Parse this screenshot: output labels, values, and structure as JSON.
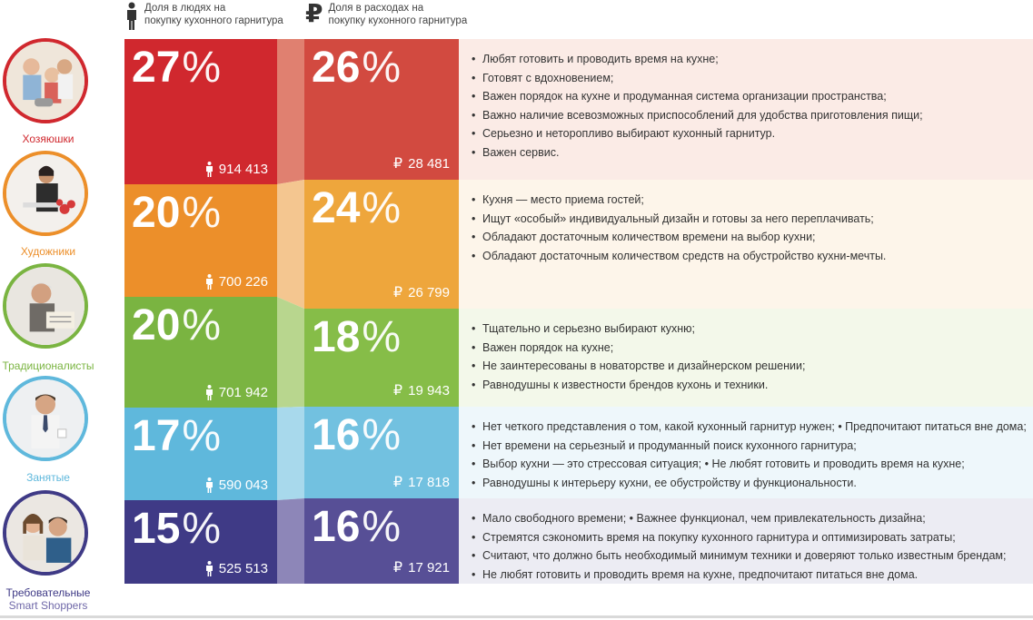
{
  "header": {
    "people_label_line1": "Доля в людях на",
    "people_label_line2": "покупку кухонного гарнитура",
    "spend_label_line1": "Доля в расходах на",
    "spend_label_line2": "покупку кухонного гарнитура",
    "ruble_symbol": "₽"
  },
  "segments": [
    {
      "name": "Хозяюшки",
      "people_pct": "27",
      "spend_pct": "26",
      "people_count": "914 413",
      "spend_value": "28 481",
      "color": "#d0282e",
      "spend_color": "#d24a40",
      "desc_bg": "#fbebe6",
      "conn_color": "#e08070",
      "traits": [
        "Любят готовить и проводить время на кухне;",
        "Готовят с вдохновением;",
        "Важен порядок на кухне и продуманная система организации пространства;",
        "Важно наличие всевозможных приспособлений для удобства приготовления пищи;",
        "Серьезно и неторопливо выбирают кухонный гарнитур.",
        "Важен сервис."
      ]
    },
    {
      "name": "Художники",
      "people_pct": "20",
      "spend_pct": "24",
      "people_count": "700 226",
      "spend_value": "26 799",
      "color": "#ec8f2a",
      "spend_color": "#eea63c",
      "desc_bg": "#fdf5ea",
      "conn_color": "#f4c690",
      "traits": [
        "Кухня — место приема гостей;",
        "Ищут «особый» индивидуальный дизайн и готовы за него переплачивать;",
        "Обладают достаточным количеством времени на выбор кухни;",
        "Обладают достаточным количеством средств на обустройство кухни-мечты."
      ]
    },
    {
      "name": "Традиционалисты",
      "people_pct": "20",
      "spend_pct": "18",
      "people_count": "701 942",
      "spend_value": "19 943",
      "color": "#7ab441",
      "spend_color": "#86bd48",
      "desc_bg": "#f3f8ea",
      "conn_color": "#b8d68e",
      "traits": [
        "Тщательно и серьезно выбирают кухню;",
        "Важен порядок на кухне;",
        "Не заинтересованы в новаторстве и дизайнерском решении;",
        "Равнодушны к известности брендов кухонь и техники."
      ]
    },
    {
      "name": "Занятые",
      "people_pct": "17",
      "spend_pct": "16",
      "people_count": "590 043",
      "spend_value": "17 818",
      "color": "#5fb8dc",
      "spend_color": "#72c1e0",
      "desc_bg": "#eef7fb",
      "conn_color": "#a8d9ec",
      "traits": [
        "Нет четкого представления о том, какой кухонный гарнитур нужен; • Предпочитают питаться вне дома;",
        "Нет времени на серьезный и продуманный поиск кухонного гарнитура;",
        "Выбор кухни — это стрессовая ситуация;   •  Не любят готовить и проводить время на кухне;",
        "Равнодушны к интерьеру кухни, ее обустройству и функциональности."
      ]
    },
    {
      "name_line1": "Требовательные",
      "name_line2": "Smart Shoppers",
      "people_pct": "15",
      "spend_pct": "16",
      "people_count": "525 513",
      "spend_value": "17 921",
      "color": "#3f3a86",
      "spend_color": "#574f96",
      "desc_bg": "#ececf3",
      "conn_color": "#8d86b8",
      "traits": [
        "Мало свободного времени;  •  Важнее функционал, чем привлекательность дизайна;",
        "Стремятся сэкономить время на покупку кухонного гарнитура и оптимизировать затраты;",
        "Считают, что должно быть необходимый минимум техники и доверяют только известным брендам;",
        "Не любят готовить и проводить время на кухне, предпочитают питаться вне дома."
      ]
    }
  ]
}
